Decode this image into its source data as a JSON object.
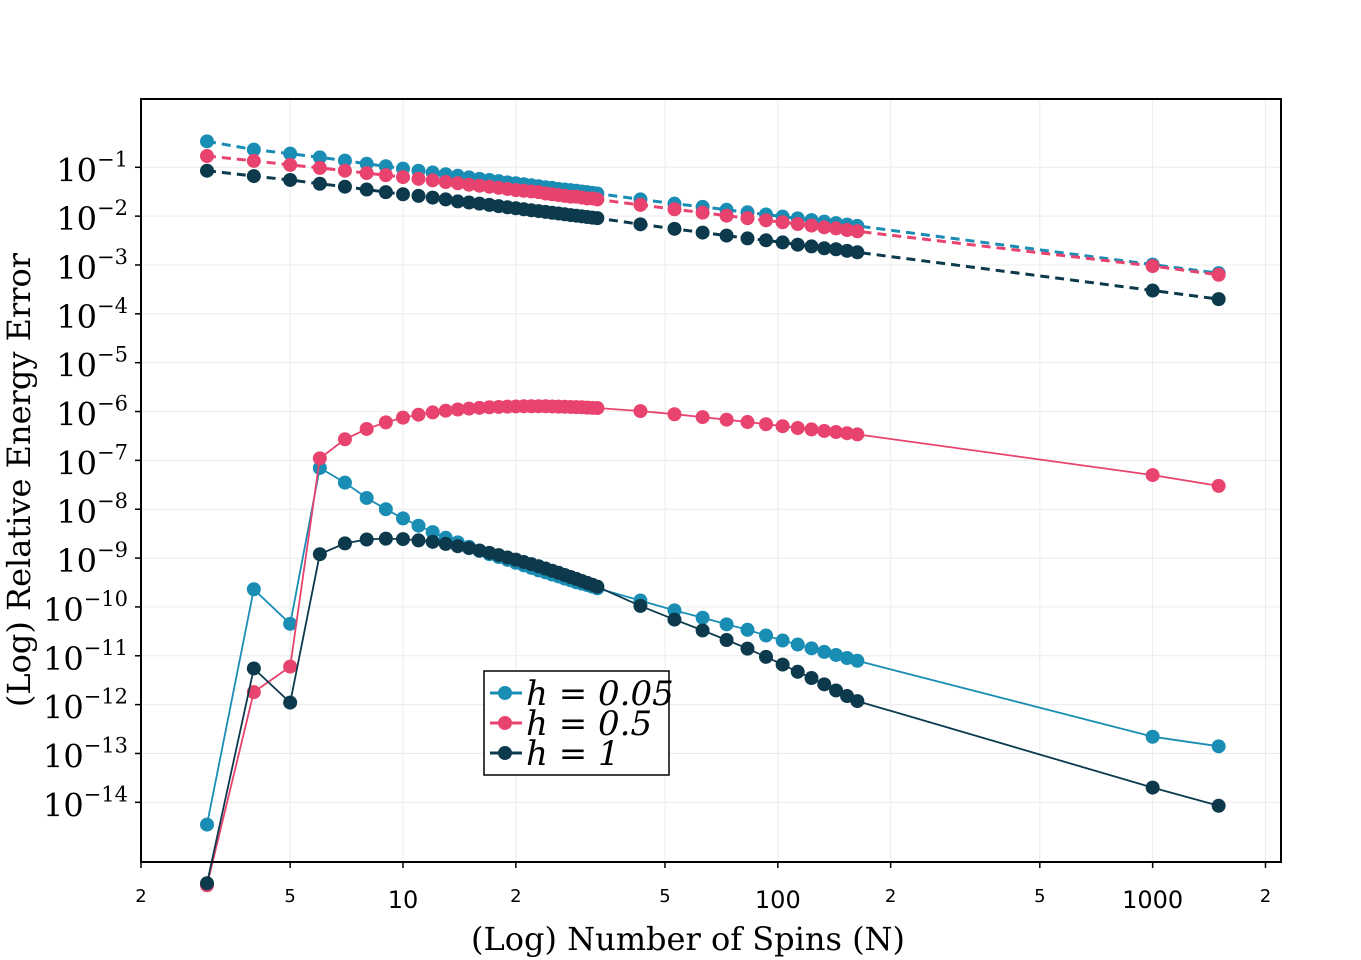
{
  "chart_data": {
    "type": "line",
    "xscale": "log",
    "yscale": "log",
    "xlabel": "(Log) Number of Spins (N)",
    "ylabel": "(Log) Relative Energy Error",
    "xlim": [
      2,
      2200
    ],
    "ylim": [
      6e-16,
      2.5
    ],
    "grid": true,
    "legend_position": "lower-center",
    "x_ticks_major": [
      {
        "value": 10,
        "label": "10"
      },
      {
        "value": 100,
        "label": "100"
      },
      {
        "value": 1000,
        "label": "1000"
      }
    ],
    "x_ticks_minor": [
      {
        "value": 2,
        "label": "2"
      },
      {
        "value": 5,
        "label": "5"
      },
      {
        "value": 20,
        "label": "2"
      },
      {
        "value": 50,
        "label": "5"
      },
      {
        "value": 200,
        "label": "2"
      },
      {
        "value": 500,
        "label": "5"
      },
      {
        "value": 2000,
        "label": "2"
      }
    ],
    "y_ticks": [
      {
        "value": 0.1,
        "base": "10",
        "exp": "−1"
      },
      {
        "value": 0.01,
        "base": "10",
        "exp": "−2"
      },
      {
        "value": 0.001,
        "base": "10",
        "exp": "−3"
      },
      {
        "value": 0.0001,
        "base": "10",
        "exp": "−4"
      },
      {
        "value": 1e-05,
        "base": "10",
        "exp": "−5"
      },
      {
        "value": 1e-06,
        "base": "10",
        "exp": "−6"
      },
      {
        "value": 1e-07,
        "base": "10",
        "exp": "−7"
      },
      {
        "value": 1e-08,
        "base": "10",
        "exp": "−8"
      },
      {
        "value": 1e-09,
        "base": "10",
        "exp": "−9"
      },
      {
        "value": 1e-10,
        "base": "10",
        "exp": "−10"
      },
      {
        "value": 1e-11,
        "base": "10",
        "exp": "−11"
      },
      {
        "value": 1e-12,
        "base": "10",
        "exp": "−12"
      },
      {
        "value": 1e-13,
        "base": "10",
        "exp": "−13"
      },
      {
        "value": 1e-14,
        "base": "10",
        "exp": "−14"
      }
    ],
    "series": [
      {
        "name": "h = 0.05",
        "color": "#1a8db5",
        "style": "dashed",
        "x": [
          3,
          4,
          5,
          6,
          7,
          8,
          9,
          10,
          11,
          12,
          13,
          14,
          15,
          16,
          17,
          18,
          19,
          20,
          21,
          22,
          23,
          24,
          25,
          26,
          27,
          28,
          29,
          30,
          31,
          32,
          33,
          43,
          53,
          63,
          73,
          83,
          93,
          103,
          113,
          123,
          133,
          143,
          153,
          163,
          1000,
          1500
        ],
        "y": [
          0.34,
          0.23,
          0.19,
          0.16,
          0.137,
          0.118,
          0.105,
          0.094,
          0.085,
          0.078,
          0.072,
          0.067,
          0.062,
          0.058,
          0.055,
          0.052,
          0.049,
          0.047,
          0.045,
          0.043,
          0.041,
          0.039,
          0.038,
          0.036,
          0.035,
          0.034,
          0.033,
          0.032,
          0.031,
          0.03,
          0.029,
          0.022,
          0.018,
          0.0155,
          0.0135,
          0.012,
          0.0108,
          0.0098,
          0.009,
          0.0083,
          0.0077,
          0.0072,
          0.0067,
          0.0063,
          0.00102,
          0.00068
        ]
      },
      {
        "name": "h = 0.5",
        "color": "#e8436e",
        "style": "dashed",
        "x": [
          3,
          4,
          5,
          6,
          7,
          8,
          9,
          10,
          11,
          12,
          13,
          14,
          15,
          16,
          17,
          18,
          19,
          20,
          21,
          22,
          23,
          24,
          25,
          26,
          27,
          28,
          29,
          30,
          31,
          32,
          33,
          43,
          53,
          63,
          73,
          83,
          93,
          103,
          113,
          123,
          133,
          143,
          153,
          163,
          1000,
          1500
        ],
        "y": [
          0.17,
          0.135,
          0.112,
          0.097,
          0.085,
          0.076,
          0.069,
          0.063,
          0.058,
          0.054,
          0.05,
          0.047,
          0.044,
          0.042,
          0.04,
          0.038,
          0.036,
          0.034,
          0.033,
          0.032,
          0.031,
          0.029,
          0.028,
          0.027,
          0.026,
          0.025,
          0.025,
          0.024,
          0.023,
          0.023,
          0.022,
          0.017,
          0.0138,
          0.0118,
          0.0102,
          0.0091,
          0.0082,
          0.0075,
          0.0069,
          0.0064,
          0.0059,
          0.0056,
          0.0052,
          0.0049,
          0.00095,
          0.00063
        ]
      },
      {
        "name": "h = 1",
        "color": "#0c3a4c",
        "style": "dashed",
        "x": [
          3,
          4,
          5,
          6,
          7,
          8,
          9,
          10,
          11,
          12,
          13,
          14,
          15,
          16,
          17,
          18,
          19,
          20,
          21,
          22,
          23,
          24,
          25,
          26,
          27,
          28,
          29,
          30,
          31,
          32,
          33,
          43,
          53,
          63,
          73,
          83,
          93,
          103,
          113,
          123,
          133,
          143,
          153,
          163,
          1000,
          1500
        ],
        "y": [
          0.085,
          0.066,
          0.055,
          0.046,
          0.04,
          0.035,
          0.031,
          0.028,
          0.026,
          0.024,
          0.022,
          0.02,
          0.019,
          0.018,
          0.017,
          0.016,
          0.0152,
          0.0145,
          0.0138,
          0.0132,
          0.0127,
          0.0122,
          0.0117,
          0.0113,
          0.0109,
          0.0105,
          0.0102,
          0.0099,
          0.0096,
          0.0093,
          0.0091,
          0.0068,
          0.0055,
          0.0046,
          0.004,
          0.0035,
          0.0032,
          0.0029,
          0.0026,
          0.0024,
          0.0022,
          0.0021,
          0.00195,
          0.00182,
          0.0003,
          0.0002
        ]
      },
      {
        "name": "h = 0.05",
        "color": "#1a8db5",
        "style": "solid",
        "x": [
          3,
          4,
          5,
          6,
          7,
          8,
          9,
          10,
          11,
          12,
          13,
          14,
          15,
          16,
          17,
          18,
          19,
          20,
          21,
          22,
          23,
          24,
          25,
          26,
          27,
          28,
          29,
          30,
          31,
          32,
          33,
          43,
          53,
          63,
          73,
          83,
          93,
          103,
          113,
          123,
          133,
          143,
          153,
          163,
          1000,
          1500
        ],
        "y": [
          3.5e-15,
          2.3e-10,
          4.5e-11,
          7e-08,
          3.5e-08,
          1.7e-08,
          1e-08,
          6.5e-09,
          4.6e-09,
          3.4e-09,
          2.6e-09,
          2.1e-09,
          1.7e-09,
          1.4e-09,
          1.2e-09,
          1.05e-09,
          9.2e-10,
          8e-10,
          7.1e-10,
          6.3e-10,
          5.6e-10,
          5.1e-10,
          4.6e-10,
          4.2e-10,
          3.8e-10,
          3.5e-10,
          3.2e-10,
          3e-10,
          2.8e-10,
          2.6e-10,
          2.4e-10,
          1.35e-10,
          8.5e-11,
          6e-11,
          4.4e-11,
          3.4e-11,
          2.6e-11,
          2.05e-11,
          1.7e-11,
          1.42e-11,
          1.2e-11,
          1.04e-11,
          9e-12,
          7.9e-12,
          2.2e-13,
          1.4e-13
        ]
      },
      {
        "name": "h = 0.5",
        "color": "#e8436e",
        "style": "solid",
        "x": [
          3,
          4,
          5,
          6,
          7,
          8,
          9,
          10,
          11,
          12,
          13,
          14,
          15,
          16,
          17,
          18,
          19,
          20,
          21,
          22,
          23,
          24,
          25,
          26,
          27,
          28,
          29,
          30,
          31,
          32,
          33,
          43,
          53,
          63,
          73,
          83,
          93,
          103,
          113,
          123,
          133,
          143,
          153,
          163,
          1000,
          1500
        ],
        "y": [
          2e-16,
          1.8e-12,
          6e-12,
          1.1e-07,
          2.7e-07,
          4.4e-07,
          6e-07,
          7.5e-07,
          8.6e-07,
          9.6e-07,
          1.04e-06,
          1.1e-06,
          1.15e-06,
          1.19e-06,
          1.22e-06,
          1.24e-06,
          1.26e-06,
          1.27e-06,
          1.28e-06,
          1.28e-06,
          1.28e-06,
          1.28e-06,
          1.27e-06,
          1.26e-06,
          1.25e-06,
          1.24e-06,
          1.23e-06,
          1.22e-06,
          1.2e-06,
          1.19e-06,
          1.18e-06,
          1.02e-06,
          8.8e-07,
          7.7e-07,
          6.8e-07,
          6.1e-07,
          5.5e-07,
          5e-07,
          4.6e-07,
          4.3e-07,
          4e-07,
          3.8e-07,
          3.6e-07,
          3.4e-07,
          5e-08,
          3e-08
        ]
      },
      {
        "name": "h = 1",
        "color": "#0c3a4c",
        "style": "solid",
        "x": [
          3,
          4,
          5,
          6,
          7,
          8,
          9,
          10,
          11,
          12,
          13,
          14,
          15,
          16,
          17,
          18,
          19,
          20,
          21,
          22,
          23,
          24,
          25,
          26,
          27,
          28,
          29,
          30,
          31,
          32,
          33,
          43,
          53,
          63,
          73,
          83,
          93,
          103,
          113,
          123,
          133,
          143,
          153,
          163,
          1000,
          1500
        ],
        "y": [
          2.2e-16,
          5.5e-12,
          1.1e-12,
          1.2e-09,
          2e-09,
          2.4e-09,
          2.5e-09,
          2.45e-09,
          2.3e-09,
          2.15e-09,
          1.95e-09,
          1.75e-09,
          1.6e-09,
          1.43e-09,
          1.28e-09,
          1.15e-09,
          1.03e-09,
          9.3e-10,
          8.3e-10,
          7.5e-10,
          6.8e-10,
          6.1e-10,
          5.5e-10,
          5e-10,
          4.5e-10,
          4.1e-10,
          3.75e-10,
          3.4e-10,
          3.1e-10,
          2.85e-10,
          2.6e-10,
          1.05e-10,
          5.5e-11,
          3.3e-11,
          2.1e-11,
          1.4e-11,
          9.5e-12,
          6.6e-12,
          4.7e-12,
          3.5e-12,
          2.6e-12,
          1.95e-12,
          1.5e-12,
          1.18e-12,
          2e-14,
          8.5e-15
        ]
      }
    ],
    "legend": [
      {
        "label": "h = 0.05",
        "color": "#1a8db5"
      },
      {
        "label": "h = 0.5",
        "color": "#e8436e"
      },
      {
        "label": "h = 1",
        "color": "#0c3a4c"
      }
    ]
  }
}
